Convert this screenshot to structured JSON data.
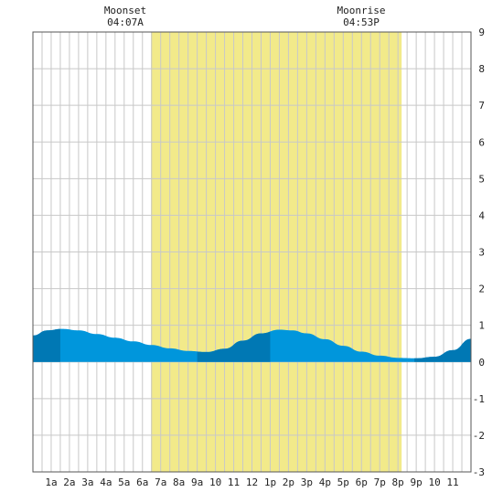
{
  "chart_data": {
    "type": "area",
    "title": "",
    "xlabel": "",
    "ylabel": "",
    "x_tick_labels": [
      "1a",
      "2a",
      "3a",
      "4a",
      "5a",
      "6a",
      "7a",
      "8a",
      "9a",
      "10",
      "11",
      "12",
      "1p",
      "2p",
      "3p",
      "4p",
      "5p",
      "6p",
      "7p",
      "8p",
      "9p",
      "10",
      "11"
    ],
    "xlim": [
      0,
      24
    ],
    "ylim": [
      -3,
      9
    ],
    "y_ticks": [
      "9",
      "8",
      "7",
      "6",
      "5",
      "4",
      "3",
      "2",
      "1",
      "0",
      "-1",
      "-2",
      "-3"
    ],
    "grid": true,
    "annotations": [
      {
        "title": "Moonset",
        "time": "04:07A"
      },
      {
        "title": "Moonrise",
        "time": "04:53P"
      }
    ],
    "daylight_hours": [
      6.47,
      20.2
    ],
    "series": [
      {
        "x": [
          0,
          0.8,
          1.6,
          2.5,
          3.5,
          4.5,
          5.5,
          6.5,
          7.5,
          8.5,
          9.5,
          10.5,
          11.5,
          12.5,
          13.5,
          14.2,
          15,
          16,
          17,
          18,
          19,
          20,
          21,
          22,
          23,
          24
        ],
        "values": [
          0.72,
          0.86,
          0.9,
          0.86,
          0.76,
          0.66,
          0.56,
          0.46,
          0.37,
          0.3,
          0.27,
          0.36,
          0.58,
          0.78,
          0.88,
          0.86,
          0.78,
          0.62,
          0.44,
          0.28,
          0.17,
          0.11,
          0.1,
          0.14,
          0.32,
          0.63
        ]
      }
    ],
    "colors": {
      "daylight": "#f2ea8a",
      "tide_light": "#0096dc",
      "tide_dark": "#0078b4",
      "grid": "#c8c8c8",
      "axis": "#555555"
    }
  }
}
